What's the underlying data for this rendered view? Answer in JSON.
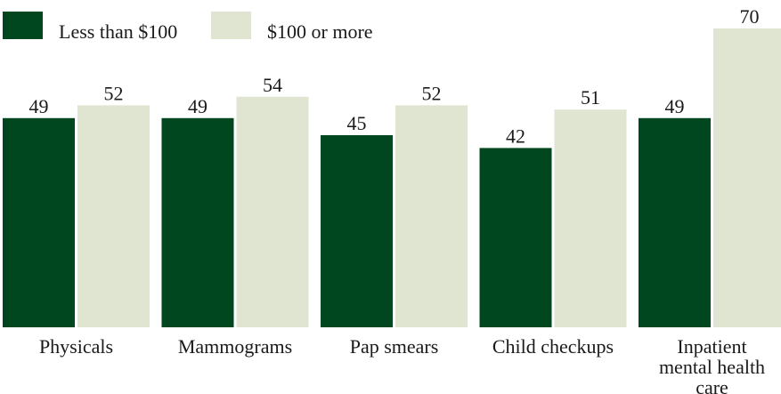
{
  "chart_data": {
    "type": "bar",
    "title": "",
    "xlabel": "",
    "ylabel": "",
    "ylim": [
      0,
      75
    ],
    "grid": false,
    "legend_placement": "top-left",
    "categories": [
      [
        "Physicals"
      ],
      [
        "Mammograms"
      ],
      [
        "Pap smears"
      ],
      [
        "Child checkups"
      ],
      [
        "Inpatient",
        "mental health",
        "care"
      ]
    ],
    "series": [
      {
        "name": "Less than $100",
        "color": "#00471f",
        "values": [
          49,
          49,
          45,
          42,
          49
        ]
      },
      {
        "name": "$100 or more",
        "color": "#dfe5d1",
        "values": [
          52,
          54,
          52,
          51,
          70
        ]
      }
    ]
  }
}
